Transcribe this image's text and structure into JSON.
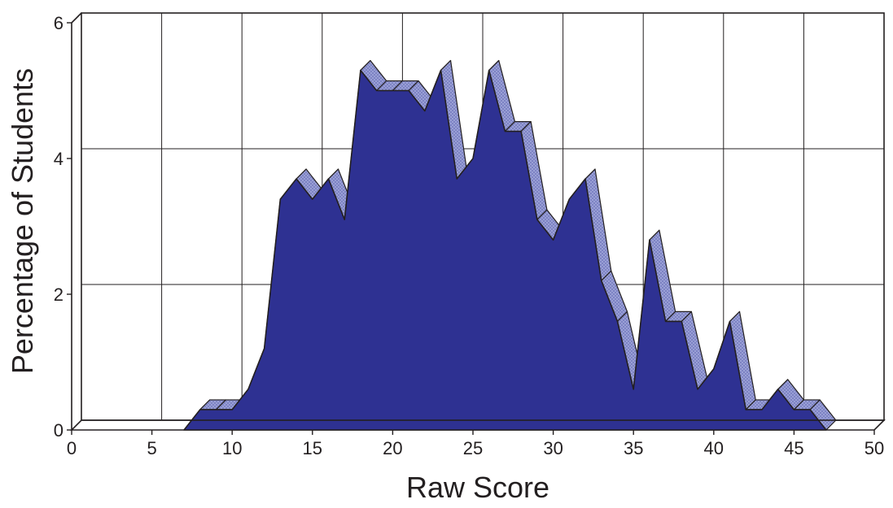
{
  "chart_data": {
    "type": "area",
    "title": "",
    "xlabel": "Raw Score",
    "ylabel": "Percentage of Students",
    "xlim": [
      0,
      50
    ],
    "ylim": [
      0,
      6
    ],
    "xticks": [
      0,
      5,
      10,
      15,
      20,
      25,
      30,
      35,
      40,
      45,
      50
    ],
    "yticks": [
      0,
      2,
      4,
      6
    ],
    "grid": true,
    "legend": "none",
    "style": "3d-ribbon",
    "colors": {
      "fill": "#2e3192",
      "ribbon": "#9ea4d8",
      "grid": "#231f20",
      "outline": "#231f20"
    },
    "series": [
      {
        "x": [
          7,
          8,
          9,
          10,
          11,
          12,
          13,
          14,
          15,
          16,
          17,
          18,
          19,
          20,
          21,
          22,
          23,
          24,
          25,
          26,
          27,
          28,
          29,
          30,
          31,
          32,
          33,
          34,
          35,
          36,
          37,
          38,
          39,
          40,
          41,
          42,
          43,
          44,
          45,
          46,
          47
        ],
        "values": [
          0,
          0.3,
          0.3,
          0.3,
          0.6,
          1.2,
          3.4,
          3.7,
          3.4,
          3.7,
          3.1,
          5.3,
          5.0,
          5.0,
          5.0,
          4.7,
          5.3,
          3.7,
          4.0,
          5.3,
          4.4,
          4.4,
          3.1,
          2.8,
          3.4,
          3.7,
          2.2,
          1.6,
          0.6,
          2.8,
          1.6,
          1.6,
          0.6,
          0.9,
          1.6,
          0.3,
          0.3,
          0.6,
          0.3,
          0.3,
          0
        ]
      }
    ]
  }
}
